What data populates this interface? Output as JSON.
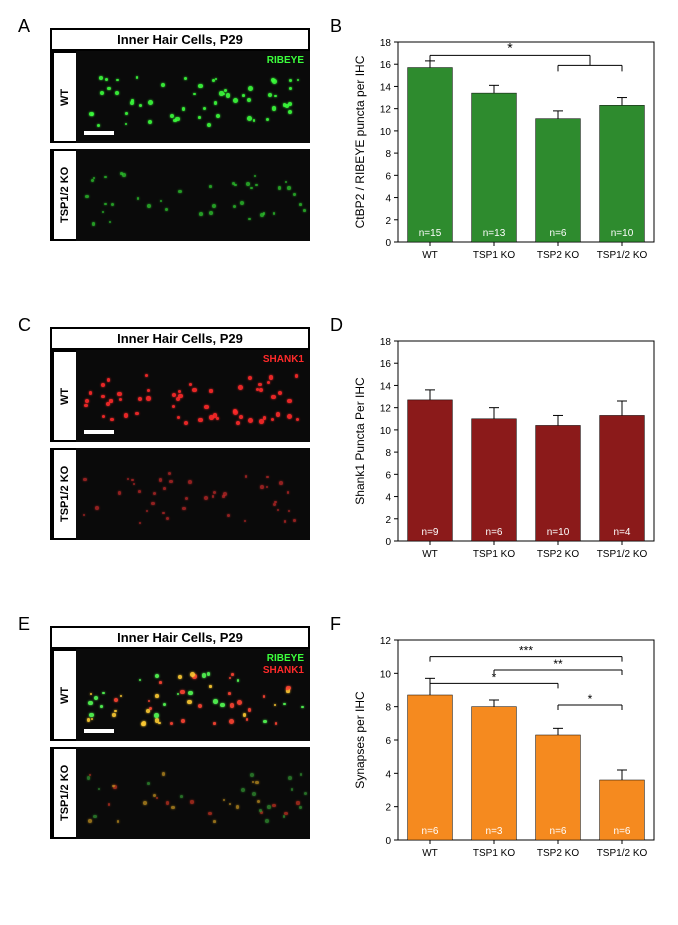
{
  "labels": {
    "A": "A",
    "B": "B",
    "C": "C",
    "D": "D",
    "E": "E",
    "F": "F"
  },
  "micro": {
    "title": "Inner Hair Cells, P29",
    "side_wt": "WT",
    "side_ko": "TSP1/2 KO",
    "ribeye": "RIBEYE",
    "shank1": "SHANK1"
  },
  "charts": {
    "B": {
      "ylabel": "CtBP2 / RIBEYE puncta per IHC",
      "categories": [
        "WT",
        "TSP1 KO",
        "TSP2 KO",
        "TSP1/2 KO"
      ],
      "values": [
        15.7,
        13.4,
        11.1,
        12.3
      ],
      "errors": [
        0.6,
        0.7,
        0.7,
        0.7
      ],
      "n_labels": [
        "n=15",
        "n=13",
        "n=6",
        "n=10"
      ],
      "bar_color": "#2e8b2e",
      "ylim": [
        0,
        18
      ],
      "ytick_step": 2,
      "sig": [
        {
          "type": "bracket",
          "from": 0,
          "to_group": [
            2,
            3
          ],
          "label": "*",
          "y": 16.8
        }
      ]
    },
    "D": {
      "ylabel": "Shank1 Puncta Per IHC",
      "categories": [
        "WT",
        "TSP1 KO",
        "TSP2 KO",
        "TSP1/2 KO"
      ],
      "values": [
        12.7,
        11.0,
        10.4,
        11.3
      ],
      "errors": [
        0.9,
        1.0,
        0.9,
        1.3
      ],
      "n_labels": [
        "n=9",
        "n=6",
        "n=10",
        "n=4"
      ],
      "bar_color": "#8b1a1a",
      "ylim": [
        0,
        18
      ],
      "ytick_step": 2,
      "sig": []
    },
    "F": {
      "ylabel": "Synapses per IHC",
      "categories": [
        "WT",
        "TSP1 KO",
        "TSP2 KO",
        "TSP1/2 KO"
      ],
      "values": [
        8.7,
        8.0,
        6.3,
        3.6
      ],
      "errors": [
        1.0,
        0.4,
        0.4,
        0.6
      ],
      "n_labels": [
        "n=6",
        "n=3",
        "n=6",
        "n=6"
      ],
      "bar_color": "#f58a1f",
      "ylim": [
        0,
        12
      ],
      "ytick_step": 2,
      "sig": [
        {
          "type": "line",
          "from": 0,
          "to": 3,
          "label": "***",
          "y": 11.0
        },
        {
          "type": "line",
          "from": 1,
          "to": 3,
          "label": "**",
          "y": 10.2
        },
        {
          "type": "line",
          "from": 0,
          "to": 2,
          "label": "*",
          "y": 9.4
        },
        {
          "type": "line",
          "from": 2,
          "to": 3,
          "label": "*",
          "y": 8.1
        }
      ]
    }
  },
  "dots": {
    "green_wt": {
      "count": 55,
      "color": "#3cff3c",
      "size_min": 2,
      "size_max": 5,
      "opacity": 0.9
    },
    "green_ko": {
      "count": 38,
      "color": "#2ecc2e",
      "size_min": 2,
      "size_max": 4,
      "opacity": 0.75
    },
    "red_wt": {
      "count": 55,
      "color": "#ff2a2a",
      "size_min": 3,
      "size_max": 5,
      "opacity": 0.9
    },
    "red_ko": {
      "count": 40,
      "color": "#cc2a2a",
      "size_min": 2,
      "size_max": 4,
      "opacity": 0.7
    },
    "merge_wt": {
      "count": 60,
      "colors": [
        "#ffcc33",
        "#ff4433",
        "#55ff55"
      ],
      "size_min": 2,
      "size_max": 5,
      "opacity": 0.9
    },
    "merge_ko": {
      "count": 42,
      "colors": [
        "#cc9922",
        "#cc3322",
        "#339933"
      ],
      "size_min": 2,
      "size_max": 4,
      "opacity": 0.7
    }
  }
}
